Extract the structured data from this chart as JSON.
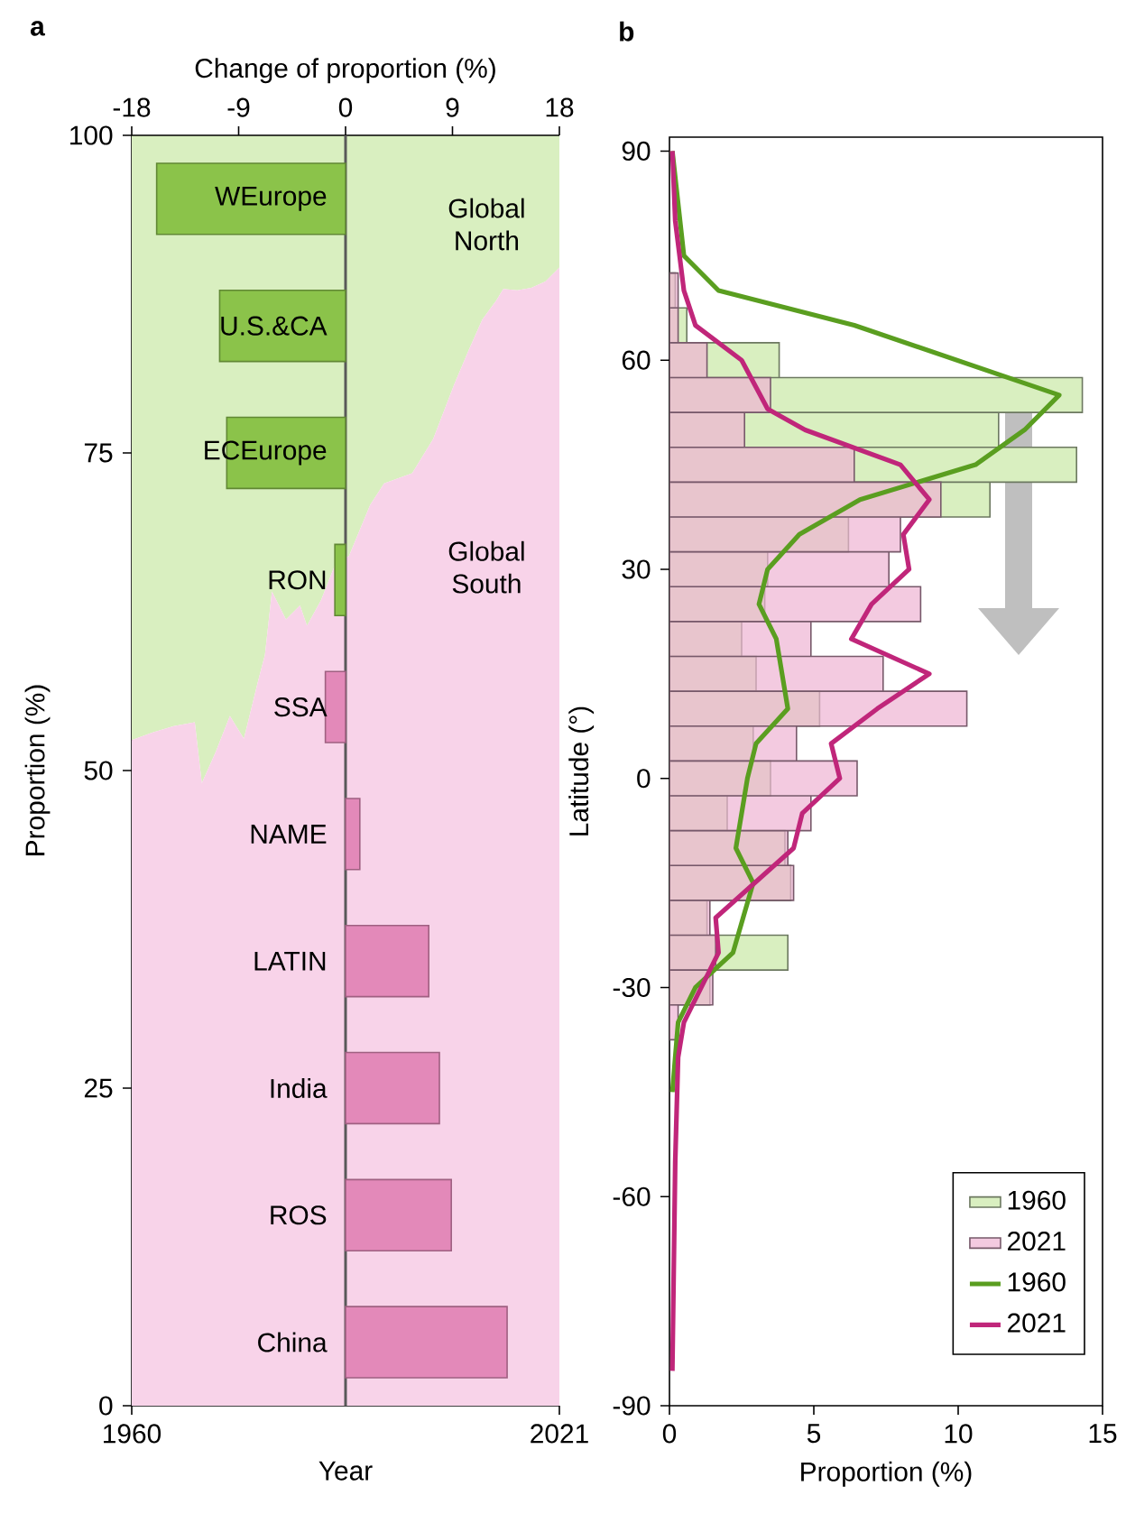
{
  "chart_data": [
    {
      "type": "area",
      "title": "a",
      "xlabel": "Year",
      "ylabel": "Proportion (%)",
      "stacked": true,
      "x": [
        1960,
        1963,
        1966,
        1969,
        1970,
        1972,
        1974,
        1976,
        1978,
        1979,
        1980,
        1982,
        1984,
        1985,
        1987,
        1989,
        1991,
        1994,
        1996,
        2000,
        2003,
        2006,
        2008,
        2010,
        2012,
        2013,
        2015,
        2017,
        2019,
        2021
      ],
      "xlim": [
        1960,
        2021
      ],
      "xticks": [
        1960,
        2021
      ],
      "ylim": [
        0,
        100
      ],
      "yticks": [
        0,
        25,
        50,
        75,
        100
      ],
      "series": [
        {
          "name": "Global South",
          "color": "#f8d3e9",
          "values": [
            52.4,
            53.0,
            53.5,
            53.8,
            49.0,
            51.5,
            54.3,
            52.5,
            57.0,
            59.1,
            64.1,
            61.9,
            63.0,
            61.4,
            63.4,
            66.2,
            66.9,
            70.9,
            72.6,
            73.4,
            76.1,
            80.4,
            83.0,
            85.5,
            87.0,
            87.9,
            87.8,
            88.0,
            88.5,
            89.6
          ]
        },
        {
          "name": "Global North",
          "color": "#d9efc0",
          "values": [
            47.6,
            47.0,
            46.5,
            46.2,
            51.0,
            48.5,
            45.7,
            47.5,
            43.0,
            40.9,
            35.9,
            38.1,
            37.0,
            38.6,
            36.6,
            33.8,
            33.1,
            29.1,
            27.4,
            26.6,
            23.9,
            19.6,
            17.0,
            14.5,
            13.0,
            12.1,
            12.2,
            12.0,
            11.5,
            10.4
          ]
        }
      ]
    },
    {
      "type": "bar",
      "orientation": "horizontal",
      "xlabel": "Change of proportion (%)",
      "categories": [
        "WEurope",
        "U.S.&CA",
        "ECEurope",
        "RON",
        "SSA",
        "NAME",
        "LATIN",
        "India",
        "ROS",
        "China"
      ],
      "values": [
        -15.9,
        -10.6,
        -10.0,
        -0.9,
        -1.7,
        1.2,
        7.0,
        7.9,
        8.9,
        13.6
      ],
      "colors": [
        "#8bc34a",
        "#8bc34a",
        "#8bc34a",
        "#8bc34a",
        "#e389b9",
        "#e389b9",
        "#e389b9",
        "#e389b9",
        "#e389b9",
        "#e389b9"
      ],
      "xlim": [
        -18,
        18
      ],
      "xticks": [
        -18,
        -9,
        0,
        9,
        18
      ]
    },
    {
      "type": "histogram",
      "title": "b",
      "orientation": "horizontal",
      "xlabel": "Proportion (%)",
      "ylabel": "Latitude (°)",
      "bins": [
        -37.5,
        -32.5,
        -27.5,
        -22.5,
        -17.5,
        -12.5,
        -7.5,
        -2.5,
        2.5,
        7.5,
        12.5,
        17.5,
        22.5,
        27.5,
        32.5,
        37.5,
        42.5,
        47.5,
        52.5,
        57.5,
        62.5,
        67.5,
        72.5
      ],
      "xlim": [
        0,
        15
      ],
      "xticks": [
        0,
        5,
        10,
        15
      ],
      "ylim": [
        -90,
        92
      ],
      "yticks": [
        -90,
        -60,
        -30,
        0,
        30,
        60,
        90
      ],
      "legend": "bottom right",
      "series": [
        {
          "name": "1960",
          "color": "#d9efc0",
          "values": [
            null,
            1.4,
            4.1,
            1.3,
            4.2,
            4.0,
            2.0,
            3.5,
            2.9,
            5.2,
            3.0,
            2.5,
            3.3,
            3.4,
            6.2,
            11.1,
            14.1,
            11.4,
            14.3,
            3.8,
            0.6,
            0.2
          ]
        },
        {
          "name": "2021",
          "color": "#eeb3d3",
          "values": [
            0.3,
            1.5,
            1.6,
            1.4,
            4.3,
            4.1,
            4.9,
            6.5,
            4.4,
            10.3,
            7.4,
            4.9,
            8.7,
            7.6,
            8.0,
            9.4,
            6.4,
            2.6,
            3.5,
            1.3,
            0.3,
            0.3
          ]
        },
        {
          "type": "line",
          "name": "1960",
          "color": "#5a9e20",
          "x": [
            90,
            75,
            70,
            65,
            55,
            50,
            45,
            40,
            35,
            30,
            25,
            20,
            10,
            5,
            0,
            -10,
            -15,
            -25,
            -30,
            -35,
            -45
          ],
          "values": [
            0.1,
            0.5,
            1.7,
            6.4,
            13.5,
            12.3,
            10.6,
            6.6,
            4.5,
            3.4,
            3.1,
            3.7,
            4.1,
            3.0,
            2.7,
            2.3,
            2.9,
            2.2,
            0.9,
            0.3,
            0.1
          ]
        },
        {
          "type": "line",
          "name": "2021",
          "color": "#c0267a",
          "x": [
            90,
            80,
            70,
            65,
            60,
            53,
            50,
            45,
            40,
            35,
            30,
            25,
            20,
            15,
            10,
            5,
            0,
            -5,
            -10,
            -20,
            -25,
            -35,
            -40,
            -55,
            -85
          ],
          "values": [
            0.1,
            0.2,
            0.5,
            0.9,
            2.5,
            3.4,
            4.7,
            8.0,
            9.0,
            8.1,
            8.3,
            7.0,
            6.3,
            9.0,
            7.2,
            5.6,
            5.9,
            4.6,
            4.3,
            1.6,
            1.7,
            0.5,
            0.3,
            0.2,
            0.1
          ]
        }
      ]
    }
  ]
}
